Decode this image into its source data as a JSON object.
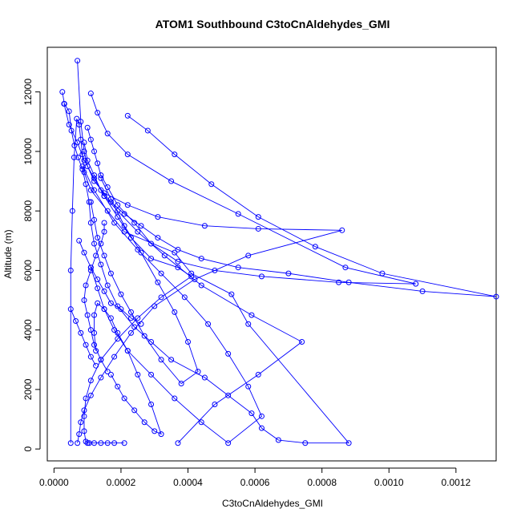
{
  "chart_data": {
    "type": "line",
    "title": "ATOM1 Southbound C3toCnAldehydes_GMI",
    "xlabel": "C3toCnAldehydes_GMI",
    "ylabel": "Altitude (m)",
    "xlim": [
      -2e-05,
      0.00132
    ],
    "ylim": [
      -400,
      13500
    ],
    "xticks": [
      0,
      0.0002,
      0.0004,
      0.0006,
      0.0008,
      0.001,
      0.0012
    ],
    "xtick_labels": [
      "0.0000",
      "0.0002",
      "0.0004",
      "0.0006",
      "0.0008",
      "0.0010",
      "0.0012"
    ],
    "yticks": [
      0,
      2000,
      4000,
      6000,
      8000,
      10000,
      12000
    ],
    "ytick_labels": [
      "0",
      "2000",
      "4000",
      "6000",
      "8000",
      "10000",
      "12000"
    ],
    "grid": false,
    "legend": "none",
    "color": "#0000ff",
    "series": [
      {
        "x": [
          2.5e-05,
          3.1e-05,
          4.5e-05,
          5.2e-05,
          6.1e-05,
          7.2e-05,
          8.5e-05,
          9.5e-05,
          0.000105,
          0.00011,
          0.00012,
          0.00014,
          0.00016,
          0.00019,
          0.00024,
          0.00029,
          0.00035,
          0.00045,
          0.00052,
          0.00059,
          0.00062,
          0.00067,
          0.00075,
          0.00088,
          0.00058,
          0.00053,
          0.00041,
          0.00036,
          0.00021,
          0.00016,
          0.00011,
          9e-05,
          8.5e-05,
          8e-05,
          7.5e-05,
          6.8e-05,
          6e-05,
          5.5e-05,
          5e-05,
          5e-05
        ],
        "y": [
          12000,
          11600,
          11350,
          10700,
          10200,
          9800,
          9400,
          8900,
          8300,
          7600,
          6900,
          6200,
          5500,
          4800,
          4100,
          3600,
          3000,
          2400,
          1800,
          1200,
          700,
          300,
          200,
          200,
          4200,
          5200,
          5900,
          6600,
          7300,
          8000,
          8700,
          9300,
          9900,
          10400,
          10900,
          11100,
          9800,
          8000,
          6000,
          200
        ]
      },
      {
        "x": [
          3e-05,
          4.5e-05,
          7e-05,
          9e-05,
          0.00012,
          0.00015,
          0.00019,
          0.00023,
          0.00029,
          0.00037,
          0.00041,
          0.00032,
          0.00025,
          0.00019,
          0.00014,
          0.00011,
          9.5e-05,
          9e-05,
          9e-05,
          9.5e-05,
          0.0001,
          0.000105,
          0.00012,
          0.00014,
          0.00016,
          0.00018,
          0.00021
        ],
        "y": [
          11600,
          10900,
          10300,
          9700,
          9100,
          8500,
          7800,
          7100,
          6400,
          6100,
          5800,
          5100,
          4400,
          3700,
          3000,
          2300,
          1700,
          1100,
          600,
          250,
          200,
          200,
          200,
          200,
          200,
          200,
          200
        ]
      },
      {
        "x": [
          7e-05,
          8e-05,
          9e-05,
          0.0001,
          0.00012,
          0.00015,
          0.00022,
          0.00031,
          0.00045,
          0.00061,
          0.00086,
          0.00058,
          0.00042,
          0.0003,
          0.00023,
          0.00018,
          0.00014,
          0.00011,
          9e-05,
          8e-05,
          7.5e-05,
          7e-05
        ],
        "y": [
          13050,
          11000,
          10000,
          9500,
          9000,
          8600,
          8200,
          7800,
          7500,
          7400,
          7350,
          6500,
          5700,
          4800,
          3900,
          3100,
          2400,
          1800,
          1300,
          900,
          500,
          200
        ]
      },
      {
        "x": [
          0.00011,
          0.00013,
          0.00016,
          0.00022,
          0.00035,
          0.00055,
          0.00087,
          0.00108,
          0.00085,
          0.00062,
          0.00048,
          0.00037,
          0.00029,
          0.00024,
          0.00019,
          0.00016,
          0.00014,
          0.00013,
          0.00012,
          0.00011,
          0.0001
        ],
        "y": [
          11950,
          11300,
          10600,
          9900,
          9000,
          7900,
          6100,
          5550,
          5600,
          5800,
          6000,
          6300,
          6900,
          7600,
          8200,
          8800,
          9200,
          9600,
          10000,
          10400,
          10800
        ]
      },
      {
        "x": [
          0.00022,
          0.00028,
          0.00036,
          0.00047,
          0.00061,
          0.00078,
          0.00098,
          0.00132,
          0.0011,
          0.00088,
          0.0007,
          0.00055,
          0.00044,
          0.00037,
          0.00031,
          0.00026,
          0.00021,
          0.00017,
          0.00014,
          0.00012,
          0.0001,
          9e-05
        ],
        "y": [
          11200,
          10700,
          9900,
          8900,
          7800,
          6800,
          5900,
          5120,
          5300,
          5600,
          5900,
          6100,
          6400,
          6700,
          7100,
          7500,
          7900,
          8300,
          8700,
          9200,
          9700,
          10300
        ]
      },
      {
        "x": [
          8.5e-05,
          0.00012,
          0.00018,
          0.00025,
          0.00032,
          0.00039,
          0.00046,
          0.00052,
          0.00058,
          0.00062,
          0.00052,
          0.00044,
          0.00036,
          0.00029,
          0.00022,
          0.00018,
          0.00015,
          0.00013,
          0.00011
        ],
        "y": [
          9500,
          8700,
          7600,
          6700,
          5900,
          5100,
          4200,
          3200,
          2100,
          1100,
          200,
          900,
          1700,
          2500,
          3300,
          4000,
          4700,
          5400,
          6100
        ]
      },
      {
        "x": [
          0.00014,
          0.00017,
          0.00021,
          0.00026,
          0.00031,
          0.00036,
          0.0004,
          0.00043,
          0.00038,
          0.00032,
          0.00027,
          0.00023,
          0.0002,
          0.00017,
          0.00015,
          0.00013,
          0.00012,
          0.00011
        ],
        "y": [
          9100,
          8400,
          7500,
          6600,
          5600,
          4600,
          3600,
          2600,
          2200,
          3000,
          3800,
          4600,
          5200,
          5900,
          6500,
          7100,
          7700,
          8300
        ]
      },
      {
        "x": [
          0.00017,
          0.00019,
          0.00021,
          0.00024,
          0.00027,
          0.0003,
          0.00032,
          0.00029,
          0.00025,
          0.00022,
          0.00019,
          0.00017,
          0.00015,
          0.00013,
          0.00012,
          0.00012,
          0.000125
        ],
        "y": [
          2500,
          2100,
          1700,
          1300,
          900,
          600,
          500,
          1500,
          2500,
          3300,
          3900,
          4400,
          4700,
          4900,
          4500,
          3900,
          3300
        ]
      },
      {
        "x": [
          0.00016,
          0.00014,
          0.00012,
          0.00011,
          0.0001,
          9e-05,
          9.5e-05,
          0.00011,
          0.000125,
          0.00014,
          0.00015,
          0.00015
        ],
        "y": [
          2600,
          3000,
          3500,
          4000,
          4500,
          5000,
          5500,
          6000,
          6500,
          6900,
          7300,
          7600
        ]
      },
      {
        "x": [
          0.00015,
          0.00019,
          0.00025,
          0.00033,
          0.00044,
          0.00059,
          0.00074,
          0.00061,
          0.00048,
          0.00037
        ],
        "y": [
          8500,
          8000,
          7300,
          6500,
          5500,
          4500,
          3600,
          2500,
          1500,
          200
        ]
      },
      {
        "x": [
          7.5e-05,
          9e-05,
          0.00011,
          0.00013,
          0.00015,
          0.00017,
          0.0002,
          0.00023,
          0.00026
        ],
        "y": [
          7000,
          6600,
          6100,
          5700,
          5300,
          4900,
          4700,
          4400,
          4200
        ]
      },
      {
        "x": [
          5e-05,
          6.5e-05,
          8e-05,
          9.5e-05,
          0.00011,
          0.000125
        ],
        "y": [
          4700,
          4300,
          3900,
          3500,
          3100,
          2800
        ]
      }
    ]
  }
}
